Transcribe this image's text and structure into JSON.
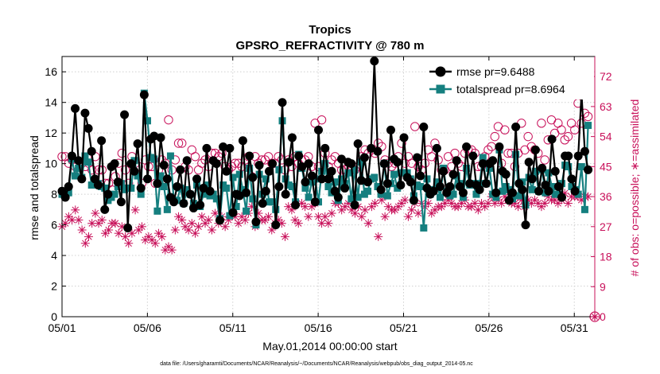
{
  "chart_data": {
    "type": "line",
    "title": "Tropics",
    "subtitle": "GPSRO_REFRACTIVITY @ 780 m",
    "xlabel": "May.01,2014 00:00:00 start",
    "ylabel": "rmse and totalspread",
    "y2label": "# of obs: o=possible; ∗=assimilated",
    "footnote": "data file: /Users/gharamti/Documents/NCAR/Reanalysis/~/Documents/NCAR/Reanalysis/webpub/obs_diag_output_2014-05.nc",
    "x_range": [
      1,
      32.2
    ],
    "ylim": [
      0,
      17
    ],
    "y2lim": [
      0,
      78
    ],
    "x_ticks": [
      1,
      6,
      11,
      16,
      21,
      26,
      31
    ],
    "x_tick_labels": [
      "05/01",
      "05/06",
      "05/11",
      "05/16",
      "05/21",
      "05/26",
      "05/31"
    ],
    "y_ticks": [
      0,
      2,
      4,
      6,
      8,
      10,
      12,
      14,
      16
    ],
    "y2_ticks": [
      0,
      9,
      18,
      27,
      36,
      45,
      54,
      63,
      72
    ],
    "grid": true,
    "legend_location": "top-right",
    "colors": {
      "rmse": "#000000",
      "spread": "#157f7f",
      "obs": "#c8105a"
    },
    "series": [
      {
        "name": "rmse",
        "label": "rmse pr=9.6488",
        "values": [
          8.2,
          7.8,
          8.5,
          10.5,
          13.6,
          10.2,
          9.0,
          13.3,
          12.3,
          10.8,
          9.0,
          8.6,
          11.5,
          7.0,
          8.0,
          9.8,
          10.0,
          8.8,
          7.5,
          13.2,
          5.8,
          10.0,
          9.5,
          11.3,
          8.4,
          14.5,
          9.0,
          11.6,
          11.8,
          8.7,
          11.7,
          9.9,
          9.0,
          7.8,
          7.5,
          8.5,
          9.6,
          7.4,
          10.2,
          8.0,
          7.1,
          9.0,
          7.3,
          8.4,
          11.0,
          8.2,
          10.2,
          10.0,
          6.3,
          11.1,
          9.5,
          11.0,
          6.8,
          8.0,
          7.9,
          11.5,
          8.1,
          10.5,
          9.1,
          6.2,
          9.9,
          7.4,
          8.2,
          9.5,
          10.0,
          6.0,
          8.5,
          14.0,
          8.0,
          10.1,
          11.7,
          7.3,
          10.5,
          9.8,
          8.8,
          10.0,
          9.2,
          7.5,
          12.2,
          9.0,
          11.0,
          9.0,
          9.5,
          8.2,
          7.8,
          10.3,
          8.4,
          10.1,
          10.0,
          7.3,
          11.3,
          8.9,
          10.4,
          8.8,
          11.0,
          16.7,
          10.8,
          8.3,
          10.0,
          8.7,
          12.2,
          10.3,
          10.1,
          8.6,
          11.7,
          9.1,
          8.8,
          7.6,
          10.4,
          9.2,
          12.4,
          8.4,
          8.0,
          8.2,
          11.0,
          8.5,
          9.5,
          8.1,
          8.5,
          9.3,
          10.2,
          8.5,
          8.1,
          11.1,
          8.7,
          10.5,
          8.6,
          8.3,
          10.0,
          8.7,
          10.0,
          10.2,
          8.1,
          11.1,
          9.5,
          9.3,
          7.6,
          8.1,
          12.4,
          8.7,
          8.3,
          6.0,
          10.1,
          9.0,
          10.9,
          8.2,
          9.7,
          8.6,
          8.2,
          11.6,
          9.5,
          8.5,
          7.8,
          10.5,
          10.5,
          9.0,
          8.2,
          10.5,
          14.6,
          10.8,
          9.6
        ]
      },
      {
        "name": "totalspread",
        "label": "totalspread pr=8.6964",
        "values": [
          8.0,
          7.9,
          8.1,
          10.3,
          9.2,
          9.7,
          9.1,
          10.5,
          10.1,
          8.6,
          8.9,
          8.7,
          8.5,
          8.4,
          7.6,
          7.8,
          8.0,
          8.5,
          8.7,
          8.3,
          8.4,
          8.4,
          10.2,
          9.2,
          8.0,
          14.6,
          12.8,
          10.4,
          10.3,
          6.9,
          9.2,
          8.5,
          7.0,
          10.5,
          7.6,
          7.6,
          8.4,
          7.4,
          8.3,
          8.0,
          7.4,
          8.6,
          7.2,
          8.0,
          8.6,
          7.9,
          8.0,
          7.7,
          6.4,
          8.6,
          8.4,
          6.6,
          9.1,
          7.2,
          9.3,
          8.3,
          6.9,
          9.7,
          7.7,
          6.0,
          9.3,
          8.0,
          9.0,
          7.5,
          7.5,
          7.0,
          9.6,
          12.8,
          9.0,
          8.6,
          8.5,
          7.5,
          10.6,
          9.7,
          8.4,
          7.8,
          8.8,
          9.0,
          7.5,
          9.5,
          10.0,
          8.5,
          8.1,
          8.8,
          7.6,
          9.0,
          8.7,
          9.4,
          7.7,
          9.6,
          7.8,
          10.1,
          8.0,
          8.2,
          9.0,
          9.1,
          8.5,
          8.0,
          10.0,
          7.9,
          8.7,
          9.3,
          8.4,
          9.4,
          9.4,
          9.4,
          9.0,
          7.9,
          8.6,
          8.5,
          5.8,
          9.0,
          8.0,
          8.3,
          8.8,
          7.8,
          9.7,
          8.2,
          7.9,
          8.0,
          9.2,
          8.7,
          7.8,
          9.7,
          8.6,
          8.7,
          8.0,
          8.7,
          10.4,
          8.7,
          9.7,
          8.0,
          7.8,
          10.9,
          8.2,
          8.5,
          8.3,
          7.7,
          10.6,
          7.9,
          8.8,
          7.3,
          9.1,
          8.3,
          9.5,
          8.2,
          9.6,
          8.1,
          9.4,
          8.5,
          8.0,
          8.0,
          8.7,
          9.9,
          9.8,
          8.5,
          8.3,
          8.0,
          9.8,
          7.0,
          12.5
        ]
      },
      {
        "name": "possible",
        "label": "possible",
        "marker": "o",
        "axis": "right",
        "values": [
          48,
          48,
          46,
          47,
          45,
          44,
          46,
          45,
          46,
          44,
          48,
          44,
          44,
          40,
          40,
          38,
          42,
          46,
          49,
          44,
          40,
          48,
          46,
          45,
          40,
          47,
          45,
          45,
          40,
          44,
          47,
          46,
          59,
          44,
          47,
          52,
          52,
          45,
          44,
          50,
          48,
          44,
          46,
          47,
          45,
          49,
          49,
          48,
          49,
          45,
          44,
          45,
          46,
          46,
          45,
          47,
          48,
          42,
          48,
          46,
          47,
          47,
          48,
          46,
          46,
          48,
          47,
          44,
          47,
          45,
          48,
          46,
          47,
          47,
          48,
          45,
          58,
          45,
          59,
          49,
          45,
          47,
          48,
          46,
          44,
          44,
          45,
          44,
          44,
          45,
          48,
          50,
          49,
          50,
          49,
          52,
          51,
          47,
          46,
          45,
          46,
          48,
          52,
          46,
          48,
          46,
          57,
          45,
          44,
          46,
          50,
          48,
          52,
          47,
          44,
          44,
          48,
          45,
          49,
          46,
          45,
          49,
          50,
          50,
          49,
          45,
          45,
          48,
          50,
          51,
          54,
          57,
          46,
          56,
          49,
          49,
          45,
          49,
          58,
          50,
          54,
          51,
          50,
          49,
          58,
          47,
          53,
          59,
          55,
          58,
          56,
          53,
          54,
          58,
          56,
          64,
          58,
          61,
          60
        ]
      },
      {
        "name": "assimilated",
        "label": "assimilated",
        "marker": "*",
        "axis": "right",
        "values": [
          27,
          28,
          30,
          29,
          32,
          29,
          26,
          22,
          24,
          28,
          31,
          28,
          29,
          25,
          26,
          28,
          28,
          25,
          27,
          24,
          22,
          25,
          32,
          26,
          27,
          23,
          24,
          23,
          22,
          25,
          24,
          20,
          21,
          20,
          26,
          30,
          29,
          27,
          26,
          28,
          25,
          27,
          30,
          28,
          29,
          26,
          31,
          28,
          30,
          27,
          29,
          31,
          30,
          28,
          30,
          29,
          31,
          33,
          27,
          31,
          29,
          29,
          30,
          26,
          28,
          29,
          28,
          24,
          33,
          32,
          29,
          28,
          34,
          33,
          30,
          33,
          34,
          30,
          28,
          30,
          28,
          31,
          34,
          34,
          32,
          33,
          34,
          32,
          31,
          33,
          30,
          32,
          28,
          33,
          34,
          24,
          35,
          30,
          33,
          32,
          32,
          33,
          34,
          35,
          30,
          32,
          34,
          31,
          34,
          33,
          34,
          31,
          32,
          33,
          33,
          34,
          35,
          34,
          33,
          33,
          34,
          35,
          33,
          33,
          34,
          32,
          34,
          33,
          34,
          36,
          34,
          35,
          34,
          36,
          35,
          34,
          34,
          33,
          35,
          33,
          35,
          34,
          35,
          34,
          33,
          34,
          36,
          35,
          35,
          34,
          35,
          37,
          34,
          36,
          36,
          36,
          35,
          36,
          36
        ]
      }
    ],
    "final_marker_label": "0"
  }
}
